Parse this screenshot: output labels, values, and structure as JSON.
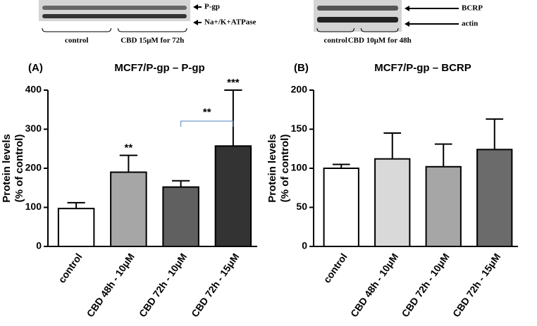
{
  "chart_data": [
    {
      "type": "bar",
      "panel_label": "(A)",
      "title": "MCF7/P-gp – P-gp",
      "ylabel": [
        "Protein levels",
        "(% of control)"
      ],
      "categories": [
        "control",
        "CBD 48h - 10μM",
        "CBD 72h - 10μM",
        "CBD 72h - 15μM"
      ],
      "values": [
        97,
        190,
        152,
        257
      ],
      "errors": [
        15,
        43,
        16,
        143
      ],
      "colors": [
        "#ffffff",
        "#a6a6a6",
        "#606060",
        "#333333"
      ],
      "ylim": [
        0,
        400
      ],
      "yticks": [
        0,
        100,
        200,
        300,
        400
      ],
      "significance": [
        null,
        "**",
        null,
        "***"
      ],
      "brackets": [
        {
          "label": "**",
          "from": "CBD 72h - 10μM",
          "to": "CBD 72h - 15μM"
        }
      ],
      "blot": {
        "bands": [
          "P-gp",
          "Na+/K+ATPase"
        ],
        "groups": [
          "control",
          "CBD 15μM for 72h"
        ]
      }
    },
    {
      "type": "bar",
      "panel_label": "(B)",
      "title": "MCF7/P-gp – BCRP",
      "ylabel": [
        "Protein levels",
        "(% of control)"
      ],
      "categories": [
        "control",
        "CBD 48h - 10μM",
        "CBD 72h - 10μM",
        "CBD 72h - 15μM"
      ],
      "values": [
        100,
        112,
        102,
        124
      ],
      "errors": [
        5,
        33,
        29,
        39
      ],
      "colors": [
        "#ffffff",
        "#d9d9d9",
        "#a6a6a6",
        "#6b6b6b"
      ],
      "ylim": [
        0,
        200
      ],
      "yticks": [
        0,
        50,
        100,
        150,
        200
      ],
      "significance": [
        null,
        null,
        null,
        null
      ],
      "brackets": [],
      "blot": {
        "bands": [
          "BCRP",
          "actin"
        ],
        "groups": [
          "control",
          "CBD 10μM for 48h"
        ]
      }
    }
  ]
}
